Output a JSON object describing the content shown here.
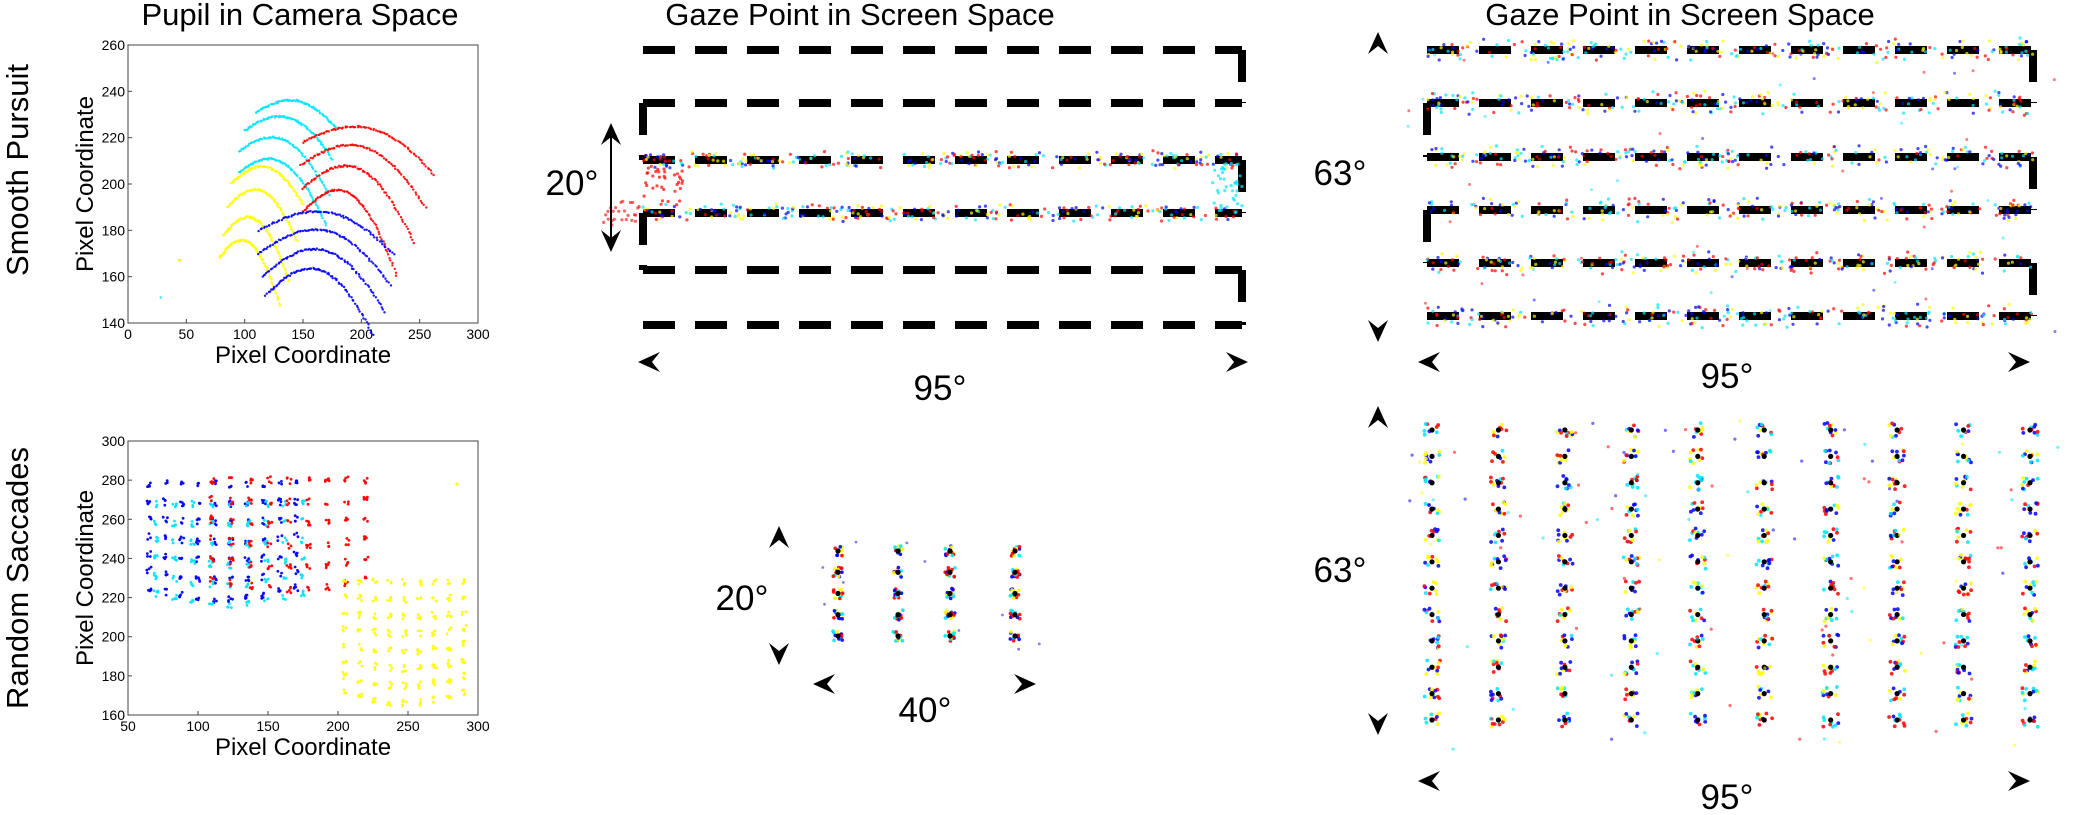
{
  "headers": {
    "col1": "Pupil in Camera Space",
    "col2": "Gaze Point in Screen Space",
    "col3": "Gaze Point in Screen Space"
  },
  "rows": {
    "top": "Smooth Pursuit",
    "bottom": "Random Saccades"
  },
  "colors": {
    "red": "#ff0000",
    "blue": "#0000ff",
    "cyan": "#00e5ff",
    "yellow": "#ffff00",
    "target": "#000000"
  },
  "chart_data": [
    {
      "id": "pupil-smooth-pursuit",
      "type": "scatter",
      "title": "",
      "xlabel": "Pixel Coordinate",
      "ylabel": "Pixel Coordinate",
      "xlim": [
        0,
        300
      ],
      "ylim": [
        140,
        260
      ],
      "xticks": [
        0,
        50,
        100,
        150,
        200,
        250,
        300
      ],
      "yticks": [
        140,
        160,
        180,
        200,
        220,
        240,
        260
      ],
      "grid": false,
      "series": [
        {
          "color": "cyan",
          "arcs": [
            {
              "x0": 95,
              "x1": 170,
              "y0": 205,
              "bulge": 10,
              "tilt": 26
            },
            {
              "x0": 95,
              "x1": 172,
              "y0": 214,
              "bulge": 10,
              "tilt": 22
            },
            {
              "x0": 100,
              "x1": 175,
              "y0": 223,
              "bulge": 9,
              "tilt": 15
            },
            {
              "x0": 110,
              "x1": 178,
              "y0": 231,
              "bulge": 7,
              "tilt": 9
            }
          ]
        },
        {
          "color": "yellow",
          "arcs": [
            {
              "x0": 78,
              "x1": 130,
              "y0": 168,
              "bulge": 12,
              "tilt": 24
            },
            {
              "x0": 82,
              "x1": 138,
              "y0": 178,
              "bulge": 12,
              "tilt": 24
            },
            {
              "x0": 85,
              "x1": 145,
              "y0": 190,
              "bulge": 11,
              "tilt": 18
            },
            {
              "x0": 88,
              "x1": 150,
              "y0": 200,
              "bulge": 10,
              "tilt": 12
            }
          ]
        },
        {
          "color": "red",
          "arcs": [
            {
              "x0": 150,
              "x1": 230,
              "y0": 188,
              "bulge": 15,
              "tilt": 32
            },
            {
              "x0": 150,
              "x1": 245,
              "y0": 198,
              "bulge": 15,
              "tilt": 28
            },
            {
              "x0": 148,
              "x1": 255,
              "y0": 208,
              "bulge": 13,
              "tilt": 22
            },
            {
              "x0": 150,
              "x1": 262,
              "y0": 218,
              "bulge": 10,
              "tilt": 17
            }
          ]
        },
        {
          "color": "blue",
          "arcs": [
            {
              "x0": 118,
              "x1": 210,
              "y0": 152,
              "bulge": 16,
              "tilt": 22
            },
            {
              "x0": 115,
              "x1": 220,
              "y0": 160,
              "bulge": 16,
              "tilt": 20
            },
            {
              "x0": 112,
              "x1": 225,
              "y0": 170,
              "bulge": 14,
              "tilt": 18
            },
            {
              "x0": 112,
              "x1": 228,
              "y0": 180,
              "bulge": 11,
              "tilt": 14
            }
          ]
        }
      ]
    },
    {
      "id": "pupil-random-saccades",
      "type": "scatter",
      "title": "",
      "xlabel": "Pixel Coordinate",
      "ylabel": "Pixel Coordinate",
      "xlim": [
        50,
        300
      ],
      "ylim": [
        160,
        300
      ],
      "xticks": [
        50,
        100,
        150,
        200,
        250,
        300
      ],
      "yticks": [
        160,
        180,
        200,
        220,
        240,
        260,
        280,
        300
      ],
      "grid": false,
      "series": [
        {
          "color": "blue",
          "grid": {
            "x0": 65,
            "x1": 170,
            "y0": 225,
            "y1": 278,
            "cols": 10,
            "rows": 7
          }
        },
        {
          "color": "cyan",
          "grid": {
            "x0": 70,
            "x1": 175,
            "y0": 222,
            "y1": 268,
            "cols": 9,
            "rows": 6
          }
        },
        {
          "color": "red",
          "grid": {
            "x0": 110,
            "x1": 220,
            "y0": 230,
            "y1": 280,
            "cols": 9,
            "rows": 6
          }
        },
        {
          "color": "yellow",
          "grid": {
            "x0": 205,
            "x1": 290,
            "y0": 172,
            "y1": 228,
            "cols": 9,
            "rows": 8
          }
        }
      ]
    },
    {
      "id": "gaze-smooth-pursuit-narrow",
      "type": "scatter",
      "title": "",
      "field_deg": [
        95,
        20
      ],
      "vertical_label": "20°",
      "horizontal_label": "95°"
    },
    {
      "id": "gaze-smooth-pursuit-wide",
      "type": "scatter",
      "title": "",
      "field_deg": [
        95,
        63
      ],
      "vertical_label": "63°",
      "horizontal_label": "95°"
    },
    {
      "id": "gaze-random-saccades-narrow",
      "type": "scatter",
      "title": "",
      "field_deg": [
        40,
        20
      ],
      "target_grid": [
        4,
        5
      ],
      "vertical_label": "20°",
      "horizontal_label": "40°"
    },
    {
      "id": "gaze-random-saccades-wide",
      "type": "scatter",
      "title": "",
      "field_deg": [
        95,
        63
      ],
      "target_grid": [
        10,
        12
      ],
      "vertical_label": "63°",
      "horizontal_label": "95°"
    }
  ]
}
